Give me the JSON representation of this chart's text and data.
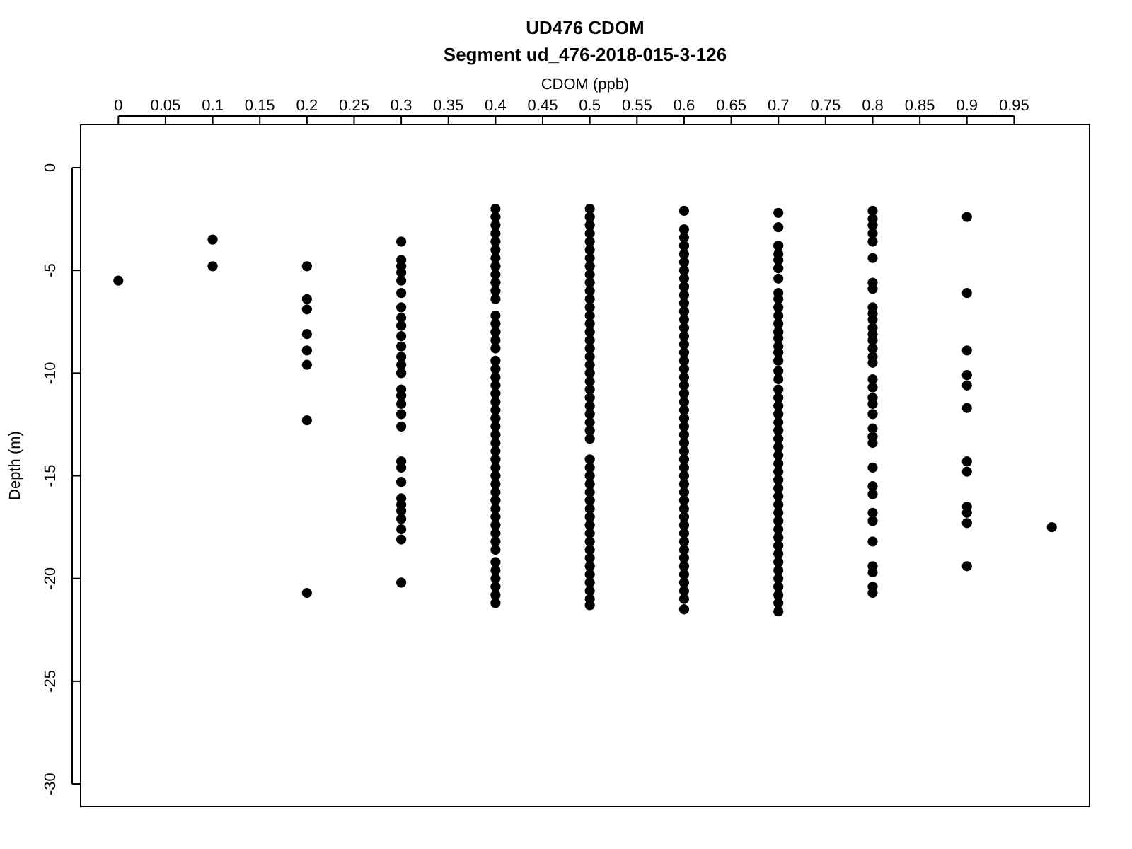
{
  "chart_data": {
    "type": "scatter",
    "title": "UD476 CDOM",
    "subtitle": "Segment ud_476-2018-015-3-126",
    "xlabel": "CDOM (ppb)",
    "ylabel": "Depth (m)",
    "xlim": [
      -0.04,
      1.03
    ],
    "ylim": [
      -31.1,
      2.1
    ],
    "xticks": [
      0,
      0.05,
      0.1,
      0.15,
      0.2,
      0.25,
      0.3,
      0.35,
      0.4,
      0.45,
      0.5,
      0.55,
      0.6,
      0.65,
      0.7,
      0.75,
      0.8,
      0.85,
      0.9,
      0.95
    ],
    "yticks": [
      0,
      -5,
      -10,
      -15,
      -20,
      -25,
      -30
    ],
    "marker": "circle",
    "grid": false,
    "series": [
      {
        "color": "#000000",
        "x": [
          0
        ],
        "values": [
          -5.5
        ]
      },
      {
        "color": "#000000",
        "x": [
          0.1,
          0.1
        ],
        "values": [
          -3.5,
          -4.8
        ]
      },
      {
        "color": "#000000",
        "x": [
          0.2,
          0.2,
          0.2,
          0.2,
          0.2,
          0.2,
          0.2,
          0.2
        ],
        "values": [
          -4.8,
          -6.4,
          -6.9,
          -8.1,
          -8.9,
          -9.6,
          -12.3,
          -20.7
        ]
      },
      {
        "color": "#000000",
        "x": [
          0.3,
          0.3,
          0.3,
          0.3,
          0.3,
          0.3,
          0.3,
          0.3,
          0.3,
          0.3,
          0.3,
          0.3,
          0.3,
          0.3,
          0.3,
          0.3,
          0.3,
          0.3,
          0.3,
          0.3,
          0.3,
          0.3,
          0.3,
          0.3,
          0.3,
          0.3,
          0.3,
          0.3,
          0.3
        ],
        "values": [
          -3.6,
          -4.5,
          -4.8,
          -5.1,
          -5.5,
          -6.1,
          -6.8,
          -7.3,
          -7.7,
          -8.2,
          -8.7,
          -9.2,
          -9.6,
          -10.0,
          -10.8,
          -11.1,
          -11.5,
          -12.0,
          -12.6,
          -14.3,
          -14.6,
          -15.3,
          -16.1,
          -16.4,
          -16.7,
          -17.1,
          -17.6,
          -18.1,
          -20.2
        ]
      },
      {
        "color": "#000000",
        "x": [
          0.4,
          0.4,
          0.4,
          0.4,
          0.4,
          0.4,
          0.4,
          0.4,
          0.4,
          0.4,
          0.4,
          0.4,
          0.4,
          0.4,
          0.4,
          0.4,
          0.4,
          0.4,
          0.4,
          0.4,
          0.4,
          0.4,
          0.4,
          0.4,
          0.4,
          0.4,
          0.4,
          0.4,
          0.4,
          0.4,
          0.4,
          0.4,
          0.4,
          0.4,
          0.4,
          0.4,
          0.4,
          0.4,
          0.4,
          0.4,
          0.4,
          0.4,
          0.4,
          0.4,
          0.4,
          0.4,
          0.4
        ],
        "values": [
          -2.0,
          -2.4,
          -2.8,
          -3.2,
          -3.6,
          -4.0,
          -4.4,
          -4.8,
          -5.2,
          -5.6,
          -6.0,
          -6.4,
          -7.2,
          -7.6,
          -8.0,
          -8.4,
          -8.8,
          -9.4,
          -9.8,
          -10.2,
          -10.6,
          -11.0,
          -11.4,
          -11.8,
          -12.2,
          -12.6,
          -13.0,
          -13.4,
          -13.8,
          -14.2,
          -14.6,
          -15.0,
          -15.4,
          -15.8,
          -16.2,
          -16.6,
          -17.0,
          -17.4,
          -17.8,
          -18.2,
          -18.6,
          -19.2,
          -19.6,
          -20.0,
          -20.4,
          -20.8,
          -21.2
        ]
      },
      {
        "color": "#000000",
        "x": [
          0.5,
          0.5,
          0.5,
          0.5,
          0.5,
          0.5,
          0.5,
          0.5,
          0.5,
          0.5,
          0.5,
          0.5,
          0.5,
          0.5,
          0.5,
          0.5,
          0.5,
          0.5,
          0.5,
          0.5,
          0.5,
          0.5,
          0.5,
          0.5,
          0.5,
          0.5,
          0.5,
          0.5,
          0.5,
          0.5,
          0.5,
          0.5,
          0.5,
          0.5,
          0.5,
          0.5,
          0.5,
          0.5,
          0.5,
          0.5,
          0.5,
          0.5,
          0.5,
          0.5,
          0.5,
          0.5,
          0.5,
          0.5
        ],
        "values": [
          -2.0,
          -2.4,
          -2.8,
          -3.2,
          -3.6,
          -4.0,
          -4.4,
          -4.8,
          -5.2,
          -5.6,
          -6.0,
          -6.4,
          -6.8,
          -7.2,
          -7.6,
          -8.0,
          -8.4,
          -8.8,
          -9.2,
          -9.6,
          -10.0,
          -10.4,
          -10.8,
          -11.2,
          -11.6,
          -12.0,
          -12.4,
          -12.8,
          -13.2,
          -14.2,
          -14.6,
          -15.0,
          -15.4,
          -15.8,
          -16.2,
          -16.6,
          -17.0,
          -17.4,
          -17.8,
          -18.2,
          -18.6,
          -19.0,
          -19.4,
          -19.8,
          -20.2,
          -20.6,
          -21.0,
          -21.3
        ]
      },
      {
        "color": "#000000",
        "x": [
          0.6,
          0.6,
          0.6,
          0.6,
          0.6,
          0.6,
          0.6,
          0.6,
          0.6,
          0.6,
          0.6,
          0.6,
          0.6,
          0.6,
          0.6,
          0.6,
          0.6,
          0.6,
          0.6,
          0.6,
          0.6,
          0.6,
          0.6,
          0.6,
          0.6,
          0.6,
          0.6,
          0.6,
          0.6,
          0.6,
          0.6,
          0.6,
          0.6,
          0.6,
          0.6,
          0.6,
          0.6,
          0.6,
          0.6,
          0.6,
          0.6,
          0.6,
          0.6,
          0.6,
          0.6,
          0.6,
          0.6,
          0.6
        ],
        "values": [
          -2.1,
          -3.0,
          -3.4,
          -3.8,
          -4.2,
          -4.6,
          -5.0,
          -5.4,
          -5.8,
          -6.2,
          -6.6,
          -7.0,
          -7.4,
          -7.8,
          -8.2,
          -8.6,
          -9.0,
          -9.4,
          -9.8,
          -10.2,
          -10.6,
          -11.0,
          -11.4,
          -11.8,
          -12.2,
          -12.6,
          -13.0,
          -13.4,
          -13.8,
          -14.2,
          -14.6,
          -15.0,
          -15.4,
          -15.8,
          -16.2,
          -16.6,
          -17.0,
          -17.4,
          -17.8,
          -18.2,
          -18.6,
          -19.0,
          -19.4,
          -19.8,
          -20.2,
          -20.6,
          -21.0,
          -21.5
        ]
      },
      {
        "color": "#000000",
        "x": [
          0.7,
          0.7,
          0.7,
          0.7,
          0.7,
          0.7,
          0.7,
          0.7,
          0.7,
          0.7,
          0.7,
          0.7,
          0.7,
          0.7,
          0.7,
          0.7,
          0.7,
          0.7,
          0.7,
          0.7,
          0.7,
          0.7,
          0.7,
          0.7,
          0.7,
          0.7,
          0.7,
          0.7,
          0.7,
          0.7,
          0.7,
          0.7,
          0.7,
          0.7,
          0.7,
          0.7,
          0.7,
          0.7,
          0.7,
          0.7,
          0.7,
          0.7,
          0.7,
          0.7,
          0.7,
          0.7,
          0.7
        ],
        "values": [
          -2.2,
          -2.9,
          -3.8,
          -4.2,
          -4.5,
          -4.9,
          -5.4,
          -6.1,
          -6.4,
          -6.8,
          -7.2,
          -7.6,
          -8.0,
          -8.3,
          -8.7,
          -9.0,
          -9.4,
          -9.9,
          -10.3,
          -10.8,
          -11.2,
          -11.6,
          -12.0,
          -12.4,
          -12.8,
          -13.2,
          -13.6,
          -14.0,
          -14.4,
          -14.8,
          -15.2,
          -15.6,
          -16.0,
          -16.4,
          -16.8,
          -17.2,
          -17.6,
          -18.0,
          -18.4,
          -18.8,
          -19.2,
          -19.6,
          -20.0,
          -20.4,
          -20.8,
          -21.2,
          -21.6
        ]
      },
      {
        "color": "#000000",
        "x": [
          0.8,
          0.8,
          0.8,
          0.8,
          0.8,
          0.8,
          0.8,
          0.8,
          0.8,
          0.8,
          0.8,
          0.8,
          0.8,
          0.8,
          0.8,
          0.8,
          0.8,
          0.8,
          0.8,
          0.8,
          0.8,
          0.8,
          0.8,
          0.8,
          0.8,
          0.8,
          0.8,
          0.8,
          0.8,
          0.8,
          0.8,
          0.8,
          0.8,
          0.8,
          0.8
        ],
        "values": [
          -2.1,
          -2.5,
          -2.8,
          -3.2,
          -3.6,
          -4.4,
          -5.6,
          -5.9,
          -6.8,
          -7.1,
          -7.4,
          -7.8,
          -8.1,
          -8.4,
          -8.8,
          -9.2,
          -9.5,
          -10.3,
          -10.7,
          -11.2,
          -11.5,
          -12.0,
          -12.7,
          -13.1,
          -13.4,
          -14.6,
          -15.5,
          -15.9,
          -16.8,
          -17.2,
          -18.2,
          -19.4,
          -19.7,
          -20.4,
          -20.7
        ]
      },
      {
        "color": "#000000",
        "x": [
          0.9,
          0.9,
          0.9,
          0.9,
          0.9,
          0.9,
          0.9,
          0.9,
          0.9,
          0.9,
          0.9,
          0.9
        ],
        "values": [
          -2.4,
          -6.1,
          -8.9,
          -10.1,
          -10.6,
          -11.7,
          -14.3,
          -14.8,
          -16.5,
          -16.8,
          -17.3,
          -19.4
        ]
      },
      {
        "color": "#000000",
        "x": [
          0.99
        ],
        "values": [
          -17.5
        ]
      }
    ]
  }
}
